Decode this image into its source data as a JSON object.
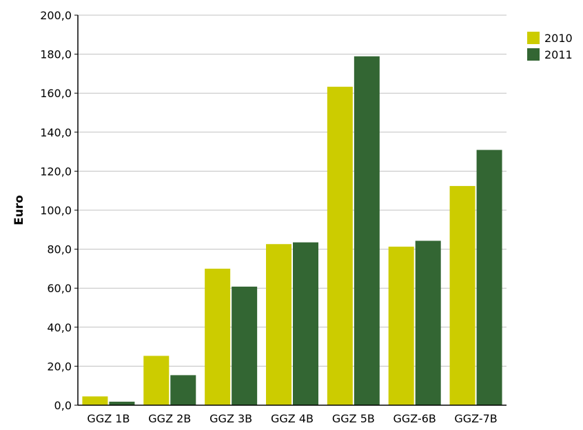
{
  "chart_data": {
    "type": "bar",
    "title": "",
    "xlabel": "",
    "ylabel": "Euro",
    "ylim": [
      0,
      200
    ],
    "y_ticks": [
      "0,0",
      "20,0",
      "40,0",
      "60,0",
      "80,0",
      "100,0",
      "120,0",
      "140,0",
      "160,0",
      "180,0",
      "200,0"
    ],
    "y_tick_values": [
      0,
      20,
      40,
      60,
      80,
      100,
      120,
      140,
      160,
      180,
      200
    ],
    "categories": [
      "GGZ 1B",
      "GGZ 2B",
      "GGZ 3B",
      "GGZ 4B",
      "GGZ 5B",
      "GGZ-6B",
      "GGZ-7B"
    ],
    "series": [
      {
        "name": "2010",
        "color": "#cccc00",
        "values": [
          4.5,
          25.3,
          70.0,
          82.6,
          163.3,
          81.3,
          112.4
        ]
      },
      {
        "name": "2011",
        "color": "#336633",
        "values": [
          1.8,
          15.4,
          60.8,
          83.5,
          178.9,
          84.3,
          130.9
        ]
      }
    ],
    "grid": true,
    "legend_position": "top-right"
  }
}
